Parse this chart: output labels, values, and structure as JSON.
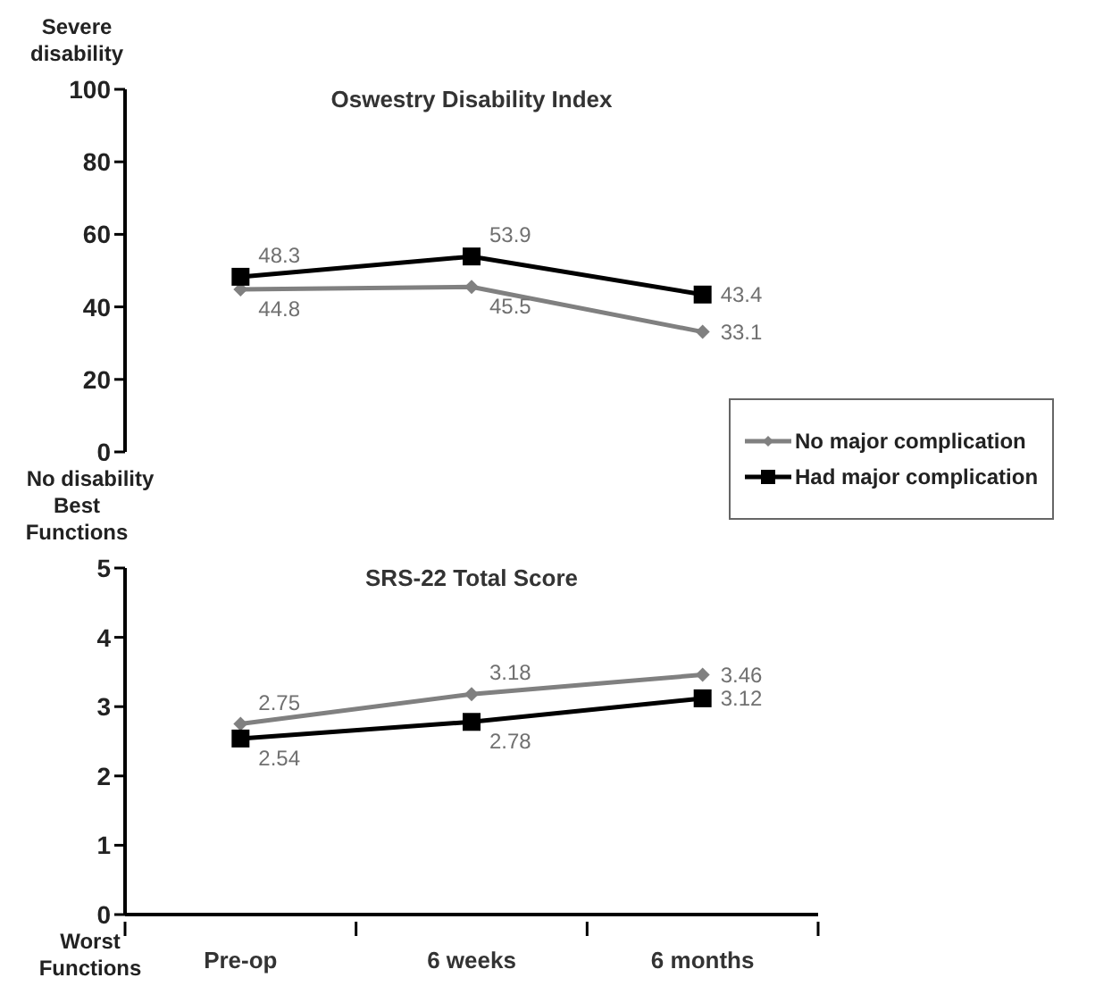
{
  "chart_data": [
    {
      "type": "line",
      "title": "Oswestry Disability Index",
      "categories": [
        null,
        null,
        null
      ],
      "series": [
        {
          "name": "No major complication",
          "color": "#808080",
          "marker": "diamond",
          "values": [
            44.8,
            45.5,
            33.1
          ]
        },
        {
          "name": "Had major complication",
          "color": "#000000",
          "marker": "square",
          "values": [
            48.3,
            53.9,
            43.4
          ]
        }
      ],
      "ylim": [
        0,
        100
      ],
      "yticks": [
        0,
        20,
        40,
        60,
        80,
        100
      ],
      "grid": false,
      "data_labels": true,
      "tick_labels": "y",
      "legend": "bottom right",
      "annotations": [
        "Severe disability",
        "No disability"
      ]
    },
    {
      "type": "line",
      "title": "SRS-22 Total Score",
      "categories": [
        "Pre-op",
        "6 weeks",
        "6 months"
      ],
      "series": [
        {
          "color": "#808080",
          "marker": "diamond",
          "values": [
            2.75,
            3.18,
            3.46
          ]
        },
        {
          "color": "#000000",
          "marker": "square",
          "values": [
            2.54,
            2.78,
            3.12
          ]
        }
      ],
      "ylim": [
        0,
        5
      ],
      "yticks": [
        0,
        1,
        2,
        3,
        4,
        5
      ],
      "grid": false,
      "data_labels": true,
      "legend": false,
      "annotations": [
        "Best Functions",
        "Worst Functions"
      ]
    }
  ]
}
